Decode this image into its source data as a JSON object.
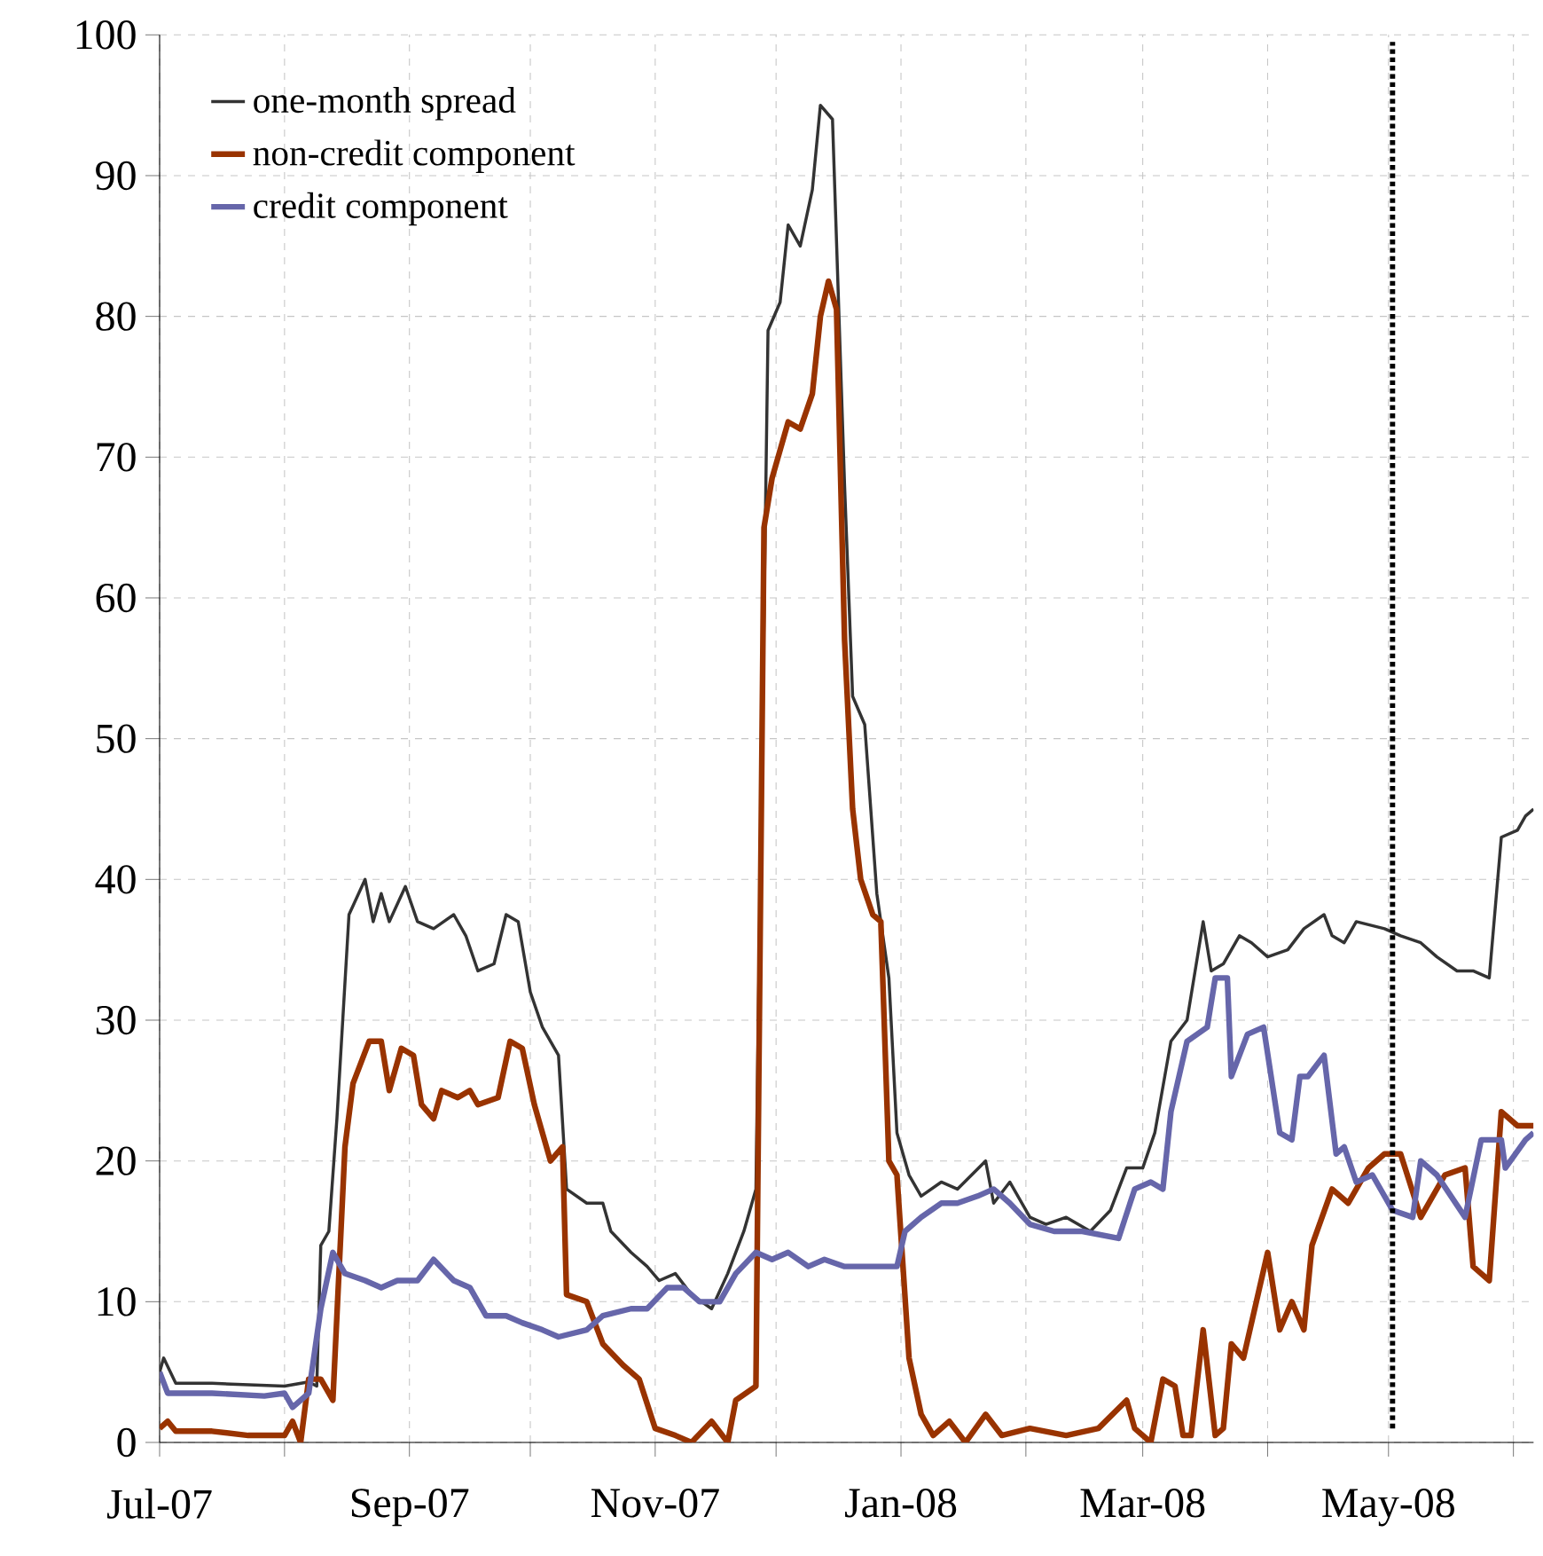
{
  "chart_data": {
    "type": "line",
    "xlim": [
      "2007-07-01",
      "2008-06-06"
    ],
    "ylim": [
      0,
      100
    ],
    "yticks": [
      0,
      10,
      20,
      30,
      40,
      50,
      60,
      70,
      80,
      90,
      100
    ],
    "xticks": [
      {
        "value": "2007-07-01",
        "label": "Jul-07"
      },
      {
        "value": "2007-08-01",
        "label": null
      },
      {
        "value": "2007-09-01",
        "label": "Sep-07"
      },
      {
        "value": "2007-10-01",
        "label": null
      },
      {
        "value": "2007-11-01",
        "label": "Nov-07"
      },
      {
        "value": "2007-12-01",
        "label": null
      },
      {
        "value": "2008-01-01",
        "label": "Jan-08"
      },
      {
        "value": "2008-02-01",
        "label": null
      },
      {
        "value": "2008-03-01",
        "label": "Mar-08"
      },
      {
        "value": "2008-04-01",
        "label": null
      },
      {
        "value": "2008-05-01",
        "label": "May-08"
      },
      {
        "value": "2008-06-01",
        "label": null
      }
    ],
    "grid": true,
    "legend": "top left",
    "marker": "none",
    "line_style": "solid",
    "ref_lines": [
      {
        "axis": "x",
        "value": "2008-05-02",
        "color": "#000000",
        "line_style": "dotted"
      }
    ],
    "series": [
      {
        "name": "one-month spread",
        "color": "#333333",
        "x": [
          "2007-07-01",
          "2007-07-02",
          "2007-07-05",
          "2007-07-14",
          "2007-08-01",
          "2007-08-07",
          "2007-08-09",
          "2007-08-10",
          "2007-08-12",
          "2007-08-14",
          "2007-08-17",
          "2007-08-21",
          "2007-08-23",
          "2007-08-25",
          "2007-08-27",
          "2007-08-31",
          "2007-09-03",
          "2007-09-07",
          "2007-09-12",
          "2007-09-15",
          "2007-09-18",
          "2007-09-22",
          "2007-09-25",
          "2007-09-28",
          "2007-10-01",
          "2007-10-04",
          "2007-10-08",
          "2007-10-10",
          "2007-10-15",
          "2007-10-19",
          "2007-10-21",
          "2007-10-26",
          "2007-10-30",
          "2007-11-02",
          "2007-11-06",
          "2007-11-10",
          "2007-11-15",
          "2007-11-19",
          "2007-11-23",
          "2007-11-26",
          "2007-11-29",
          "2007-12-02",
          "2007-12-04",
          "2007-12-07",
          "2007-12-10",
          "2007-12-12",
          "2007-12-15",
          "2007-12-18",
          "2007-12-20",
          "2007-12-23",
          "2007-12-26",
          "2007-12-29",
          "2007-12-31",
          "2008-01-03",
          "2008-01-06",
          "2008-01-11",
          "2008-01-15",
          "2008-01-22",
          "2008-01-24",
          "2008-01-28",
          "2008-02-02",
          "2008-02-06",
          "2008-02-11",
          "2008-02-17",
          "2008-02-22",
          "2008-02-26",
          "2008-03-01",
          "2008-03-04",
          "2008-03-08",
          "2008-03-12",
          "2008-03-16",
          "2008-03-18",
          "2008-03-21",
          "2008-03-25",
          "2008-03-28",
          "2008-04-01",
          "2008-04-06",
          "2008-04-10",
          "2008-04-15",
          "2008-04-17",
          "2008-04-20",
          "2008-04-23",
          "2008-04-30",
          "2008-05-04",
          "2008-05-09",
          "2008-05-13",
          "2008-05-18",
          "2008-05-22",
          "2008-05-26",
          "2008-05-29",
          "2008-06-02",
          "2008-06-04",
          "2008-06-06"
        ],
        "values": [
          5,
          6,
          4.2,
          4.2,
          4,
          4.3,
          4,
          14,
          15,
          23,
          37.5,
          40,
          37,
          39,
          37,
          39.5,
          37,
          36.5,
          37.5,
          36,
          33.5,
          34,
          37.5,
          37,
          32,
          29.5,
          27.5,
          18,
          17,
          17,
          15,
          13.5,
          12.5,
          11.5,
          12,
          10.5,
          9.5,
          12,
          15,
          18,
          79,
          81,
          86.5,
          85,
          89,
          95,
          94,
          68,
          53,
          51,
          39,
          33,
          22,
          19,
          17.5,
          18.5,
          18,
          20,
          17,
          18.5,
          16,
          15.5,
          16,
          15,
          16.5,
          19.5,
          19.5,
          22,
          28.5,
          30,
          37,
          33.5,
          34,
          36,
          35.5,
          34.5,
          35,
          36.5,
          37.5,
          36,
          35.5,
          37,
          36.5,
          36,
          35.5,
          34.5,
          33.5,
          33.5,
          33,
          43,
          43.5,
          44.5,
          45
        ]
      },
      {
        "name": "non-credit component",
        "color": "#993300",
        "x": [
          "2007-07-01",
          "2007-07-03",
          "2007-07-05",
          "2007-07-14",
          "2007-07-23",
          "2007-08-01",
          "2007-08-03",
          "2007-08-05",
          "2007-08-07",
          "2007-08-10",
          "2007-08-13",
          "2007-08-16",
          "2007-08-18",
          "2007-08-22",
          "2007-08-25",
          "2007-08-27",
          "2007-08-30",
          "2007-09-02",
          "2007-09-04",
          "2007-09-07",
          "2007-09-09",
          "2007-09-13",
          "2007-09-16",
          "2007-09-18",
          "2007-09-23",
          "2007-09-26",
          "2007-09-29",
          "2007-10-02",
          "2007-10-06",
          "2007-10-09",
          "2007-10-10",
          "2007-10-15",
          "2007-10-19",
          "2007-10-24",
          "2007-10-28",
          "2007-11-01",
          "2007-11-06",
          "2007-11-10",
          "2007-11-15",
          "2007-11-19",
          "2007-11-21",
          "2007-11-26",
          "2007-11-28",
          "2007-11-30",
          "2007-12-04",
          "2007-12-07",
          "2007-12-10",
          "2007-12-12",
          "2007-12-14",
          "2007-12-16",
          "2007-12-18",
          "2007-12-20",
          "2007-12-22",
          "2007-12-25",
          "2007-12-27",
          "2007-12-29",
          "2007-12-31",
          "2008-01-03",
          "2008-01-06",
          "2008-01-09",
          "2008-01-13",
          "2008-01-17",
          "2008-01-22",
          "2008-01-26",
          "2008-02-02",
          "2008-02-11",
          "2008-02-19",
          "2008-02-26",
          "2008-02-28",
          "2008-03-03",
          "2008-03-06",
          "2008-03-09",
          "2008-03-11",
          "2008-03-13",
          "2008-03-16",
          "2008-03-19",
          "2008-03-21",
          "2008-03-23",
          "2008-03-26",
          "2008-03-30",
          "2008-04-01",
          "2008-04-04",
          "2008-04-07",
          "2008-04-10",
          "2008-04-12",
          "2008-04-17",
          "2008-04-21",
          "2008-04-26",
          "2008-04-30",
          "2008-05-04",
          "2008-05-09",
          "2008-05-15",
          "2008-05-20",
          "2008-05-22",
          "2008-05-24",
          "2008-05-26",
          "2008-05-29",
          "2008-06-02",
          "2008-06-06"
        ],
        "values": [
          1,
          1.5,
          0.8,
          0.8,
          0.5,
          0.5,
          1.5,
          0,
          4.5,
          4.5,
          3,
          21,
          25.5,
          28.5,
          28.5,
          25,
          28,
          27.5,
          24,
          23,
          25,
          24.5,
          25,
          24,
          24.5,
          28.5,
          28,
          24,
          20,
          21,
          10.5,
          10,
          7,
          5.5,
          4.5,
          1,
          0.5,
          0,
          1.5,
          0,
          3,
          4,
          65,
          68.5,
          72.5,
          72,
          74.5,
          80,
          82.5,
          80.5,
          57,
          45,
          40,
          37.5,
          37,
          20,
          19,
          6,
          2,
          0.5,
          1.5,
          0,
          2,
          0.5,
          1,
          0.5,
          1,
          3,
          1,
          0,
          4.5,
          4,
          0.5,
          0.5,
          8,
          0.5,
          1,
          7,
          6,
          11,
          13.5,
          8,
          10,
          8,
          14,
          18,
          17,
          19.5,
          20.5,
          20.5,
          16,
          19,
          19.5,
          12.5,
          12,
          11.5,
          23.5,
          22.5,
          22.5
        ]
      },
      {
        "name": "credit component",
        "color": "#6666aa",
        "x": [
          "2007-07-01",
          "2007-07-03",
          "2007-07-14",
          "2007-07-27",
          "2007-08-01",
          "2007-08-03",
          "2007-08-07",
          "2007-08-10",
          "2007-08-13",
          "2007-08-16",
          "2007-08-21",
          "2007-08-25",
          "2007-08-29",
          "2007-09-03",
          "2007-09-07",
          "2007-09-12",
          "2007-09-16",
          "2007-09-20",
          "2007-09-25",
          "2007-09-29",
          "2007-10-04",
          "2007-10-08",
          "2007-10-15",
          "2007-10-19",
          "2007-10-26",
          "2007-10-30",
          "2007-11-04",
          "2007-11-08",
          "2007-11-12",
          "2007-11-17",
          "2007-11-21",
          "2007-11-26",
          "2007-11-30",
          "2007-12-04",
          "2007-12-09",
          "2007-12-13",
          "2007-12-18",
          "2007-12-22",
          "2007-12-26",
          "2007-12-31",
          "2008-01-02",
          "2008-01-06",
          "2008-01-11",
          "2008-01-15",
          "2008-01-20",
          "2008-01-24",
          "2008-01-28",
          "2008-02-02",
          "2008-02-08",
          "2008-02-15",
          "2008-02-24",
          "2008-02-28",
          "2008-03-03",
          "2008-03-06",
          "2008-03-08",
          "2008-03-12",
          "2008-03-17",
          "2008-03-19",
          "2008-03-22",
          "2008-03-23",
          "2008-03-27",
          "2008-03-31",
          "2008-04-04",
          "2008-04-07",
          "2008-04-09",
          "2008-04-11",
          "2008-04-15",
          "2008-04-18",
          "2008-04-20",
          "2008-04-23",
          "2008-04-27",
          "2008-05-02",
          "2008-05-07",
          "2008-05-09",
          "2008-05-13",
          "2008-05-20",
          "2008-05-24",
          "2008-05-29",
          "2008-05-30",
          "2008-06-04",
          "2008-06-06"
        ],
        "values": [
          5,
          3.5,
          3.5,
          3.3,
          3.5,
          2.5,
          3.5,
          9.5,
          13.5,
          12,
          11.5,
          11,
          11.5,
          11.5,
          13,
          11.5,
          11,
          9,
          9,
          8.5,
          8,
          7.5,
          8,
          9,
          9.5,
          9.5,
          11,
          11,
          10,
          10,
          12,
          13.5,
          13,
          13.5,
          12.5,
          13,
          12.5,
          12.5,
          12.5,
          12.5,
          15,
          16,
          17,
          17,
          17.5,
          18,
          17,
          15.5,
          15,
          15,
          14.5,
          18,
          18.5,
          18,
          23.5,
          28.5,
          29.5,
          33,
          33,
          26,
          29,
          29.5,
          22,
          21.5,
          26,
          26,
          27.5,
          20.5,
          21,
          18.5,
          19,
          16.5,
          16,
          20,
          19,
          16,
          21.5,
          21.5,
          19.5,
          21.5,
          22
        ]
      }
    ]
  }
}
